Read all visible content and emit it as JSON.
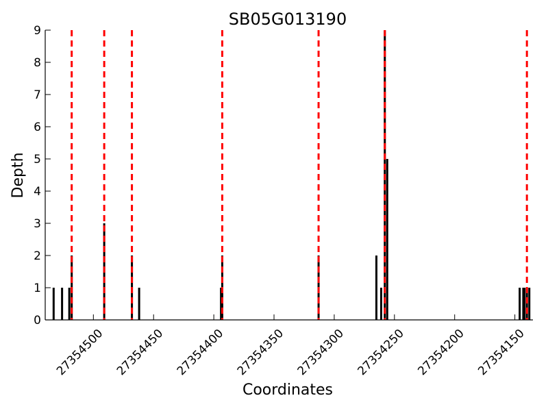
{
  "chart_data": {
    "type": "bar",
    "title": "SB05G013190",
    "xlabel": "Coordinates",
    "ylabel": "Depth",
    "x_reversed": true,
    "xlim": [
      27354540,
      27354135
    ],
    "ylim": [
      0,
      9
    ],
    "x_ticks": [
      27354500,
      27354450,
      27354400,
      27354350,
      27354300,
      27354250,
      27354200,
      27354150
    ],
    "x_tick_labels": [
      "27354500",
      "27354450",
      "27354400",
      "27354350",
      "27354300",
      "27354250",
      "27354200",
      "27354150"
    ],
    "y_ticks": [
      0,
      1,
      2,
      3,
      4,
      5,
      6,
      7,
      8,
      9
    ],
    "y_tick_labels": [
      "0",
      "1",
      "2",
      "3",
      "4",
      "5",
      "6",
      "7",
      "8",
      "9"
    ],
    "bar_color": "#000000",
    "marker_color": "#ff0000",
    "bars": [
      {
        "x": 27354533,
        "depth": 1
      },
      {
        "x": 27354526,
        "depth": 1
      },
      {
        "x": 27354520,
        "depth": 1
      },
      {
        "x": 27354518,
        "depth": 2
      },
      {
        "x": 27354491,
        "depth": 3
      },
      {
        "x": 27354468,
        "depth": 2
      },
      {
        "x": 27354462,
        "depth": 1
      },
      {
        "x": 27354394,
        "depth": 1
      },
      {
        "x": 27354393,
        "depth": 2
      },
      {
        "x": 27354313,
        "depth": 2
      },
      {
        "x": 27354265,
        "depth": 2
      },
      {
        "x": 27354261,
        "depth": 1
      },
      {
        "x": 27354258,
        "depth": 9
      },
      {
        "x": 27354256,
        "depth": 5
      },
      {
        "x": 27354146,
        "depth": 1
      },
      {
        "x": 27354143,
        "depth": 1
      },
      {
        "x": 27354142,
        "depth": 1
      },
      {
        "x": 27354140,
        "depth": 1
      },
      {
        "x": 27354138,
        "depth": 1
      }
    ],
    "vertical_markers": [
      27354518,
      27354491,
      27354468,
      27354393,
      27354313,
      27354258,
      27354140
    ],
    "grid": false,
    "legend": "none"
  }
}
